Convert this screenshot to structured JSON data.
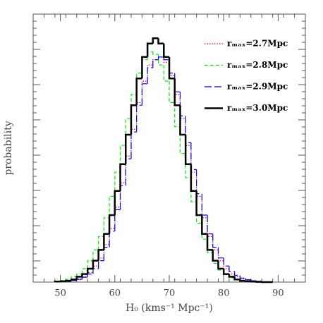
{
  "chart_data": {
    "type": "histogram",
    "xlabel": "H₀ (kms⁻¹ Mpc⁻¹)",
    "ylabel": "probability",
    "xlim": [
      45,
      95
    ],
    "ylim": [
      0,
      1
    ],
    "xticks": [
      50,
      60,
      70,
      80,
      90
    ],
    "legend": "upper right",
    "bins": [
      49,
      50,
      51,
      52,
      53,
      54,
      55,
      56,
      57,
      58,
      59,
      60,
      61,
      62,
      63,
      64,
      65,
      66,
      67,
      68,
      69,
      70,
      71,
      72,
      73,
      74,
      75,
      76,
      77,
      78,
      79,
      80,
      81,
      82,
      83,
      84,
      85,
      86,
      87,
      88,
      89
    ],
    "series": [
      {
        "name": "rₘₐₓ=2.7Mpc",
        "color": "#ff0000",
        "dash": "dotted",
        "values": [
          0.001,
          0.002,
          0.004,
          0.007,
          0.012,
          0.02,
          0.035,
          0.06,
          0.09,
          0.14,
          0.2,
          0.28,
          0.37,
          0.47,
          0.57,
          0.67,
          0.75,
          0.81,
          0.83,
          0.84,
          0.82,
          0.77,
          0.7,
          0.61,
          0.51,
          0.41,
          0.32,
          0.24,
          0.17,
          0.12,
          0.08,
          0.05,
          0.03,
          0.02,
          0.012,
          0.007,
          0.004,
          0.002,
          0.001,
          0
        ]
      },
      {
        "name": "rₘₐₓ=2.8Mpc",
        "color": "#00ee00",
        "dash": "dashed",
        "values": [
          0.003,
          0.006,
          0.01,
          0.02,
          0.03,
          0.05,
          0.08,
          0.12,
          0.17,
          0.24,
          0.32,
          0.41,
          0.51,
          0.61,
          0.7,
          0.78,
          0.83,
          0.86,
          0.85,
          0.81,
          0.75,
          0.67,
          0.58,
          0.48,
          0.39,
          0.3,
          0.22,
          0.16,
          0.11,
          0.07,
          0.045,
          0.028,
          0.016,
          0.009,
          0.005,
          0.003,
          0.001,
          0,
          0,
          0
        ]
      },
      {
        "name": "rₘₐₓ=2.9Mpc",
        "color": "#0000ff",
        "dash": "longdash",
        "values": [
          0.001,
          0.002,
          0.003,
          0.006,
          0.01,
          0.018,
          0.03,
          0.05,
          0.08,
          0.13,
          0.19,
          0.27,
          0.36,
          0.46,
          0.56,
          0.66,
          0.74,
          0.8,
          0.83,
          0.84,
          0.83,
          0.78,
          0.71,
          0.62,
          0.52,
          0.42,
          0.33,
          0.25,
          0.18,
          0.13,
          0.09,
          0.06,
          0.04,
          0.025,
          0.015,
          0.009,
          0.005,
          0.003,
          0.001,
          0
        ]
      },
      {
        "name": "rₘₐₓ=3.0Mpc",
        "color": "#000000",
        "dash": "solid",
        "values": [
          0.002,
          0.003,
          0.005,
          0.01,
          0.02,
          0.03,
          0.05,
          0.08,
          0.12,
          0.18,
          0.25,
          0.34,
          0.44,
          0.55,
          0.66,
          0.76,
          0.84,
          0.89,
          0.91,
          0.89,
          0.84,
          0.76,
          0.66,
          0.55,
          0.44,
          0.34,
          0.25,
          0.18,
          0.12,
          0.08,
          0.05,
          0.03,
          0.02,
          0.01,
          0.005,
          0.003,
          0.002,
          0.001,
          0,
          0
        ]
      }
    ]
  }
}
